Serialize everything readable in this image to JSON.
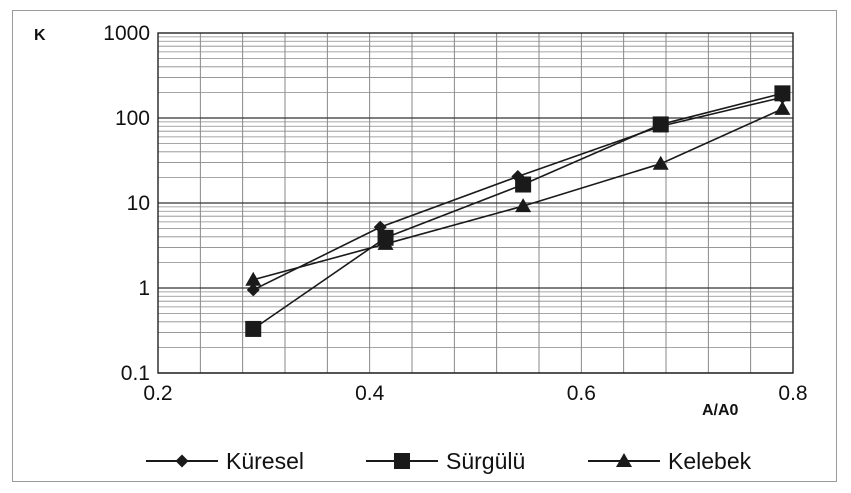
{
  "chart_data": {
    "type": "line",
    "title": "",
    "xlabel": "A/A0",
    "ylabel": "K",
    "xscale": "linear",
    "yscale": "log",
    "xlim": [
      0.2,
      0.8
    ],
    "ylim": [
      0.1,
      1000
    ],
    "x_ticks": [
      "0.2",
      "0.4",
      "0.6",
      "0.8"
    ],
    "y_ticks": [
      "0.1",
      "1",
      "10",
      "100",
      "1000"
    ],
    "grid": true,
    "legend_position": "bottom",
    "series": [
      {
        "name": "Küresel",
        "marker": "diamond",
        "x": [
          0.29,
          0.41,
          0.54,
          0.675,
          0.79
        ],
        "y": [
          0.95,
          5.2,
          20.5,
          80,
          175
        ]
      },
      {
        "name": "Sürgülü",
        "marker": "square",
        "x": [
          0.29,
          0.415,
          0.545,
          0.675,
          0.79
        ],
        "y": [
          0.33,
          3.9,
          16.5,
          84,
          195
        ]
      },
      {
        "name": "Kelebek",
        "marker": "triangle",
        "x": [
          0.29,
          0.415,
          0.545,
          0.675,
          0.79
        ],
        "y": [
          1.25,
          3.3,
          9.2,
          29,
          128
        ]
      }
    ]
  }
}
